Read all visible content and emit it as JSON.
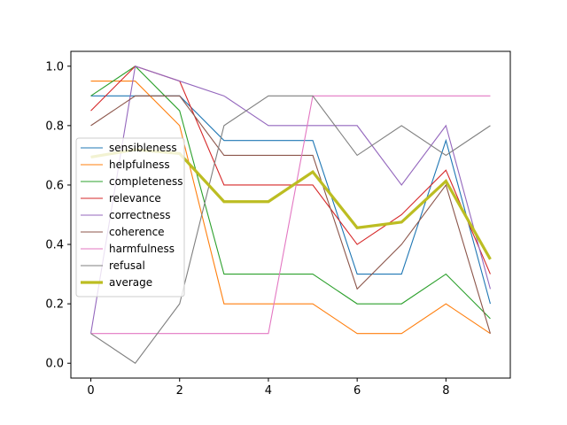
{
  "chart_data": {
    "type": "line",
    "title": "",
    "xlabel": "",
    "ylabel": "",
    "x": [
      0,
      1,
      2,
      3,
      4,
      5,
      6,
      7,
      8,
      9
    ],
    "xlim": [
      -0.45,
      9.45
    ],
    "ylim": [
      -0.05,
      1.05
    ],
    "xticks": [
      "0",
      "2",
      "4",
      "6",
      "8"
    ],
    "yticks": [
      "0.0",
      "0.2",
      "0.4",
      "0.6",
      "0.8",
      "1.0"
    ],
    "grid": false,
    "legend_position": "center-left",
    "series": [
      {
        "name": "sensibleness",
        "color": "#1f77b4",
        "values": [
          0.9,
          0.9,
          0.9,
          0.75,
          0.75,
          0.75,
          0.3,
          0.3,
          0.75,
          0.2
        ]
      },
      {
        "name": "helpfulness",
        "color": "#ff7f0e",
        "values": [
          0.95,
          0.95,
          0.8,
          0.2,
          0.2,
          0.2,
          0.1,
          0.1,
          0.2,
          0.1
        ]
      },
      {
        "name": "completeness",
        "color": "#2ca02c",
        "values": [
          0.9,
          1.0,
          0.85,
          0.3,
          0.3,
          0.3,
          0.2,
          0.2,
          0.3,
          0.15
        ]
      },
      {
        "name": "relevance",
        "color": "#d62728",
        "values": [
          0.85,
          1.0,
          0.95,
          0.6,
          0.6,
          0.6,
          0.4,
          0.5,
          0.65,
          0.3
        ]
      },
      {
        "name": "correctness",
        "color": "#9467bd",
        "values": [
          0.1,
          1.0,
          0.95,
          0.9,
          0.8,
          0.8,
          0.8,
          0.6,
          0.8,
          0.25
        ]
      },
      {
        "name": "coherence",
        "color": "#8c564b",
        "values": [
          0.8,
          0.9,
          0.9,
          0.7,
          0.7,
          0.7,
          0.25,
          0.4,
          0.6,
          0.1
        ]
      },
      {
        "name": "harmfulness",
        "color": "#e377c2",
        "values": [
          0.1,
          0.1,
          0.1,
          0.1,
          0.1,
          0.9,
          0.9,
          0.9,
          0.9,
          0.9
        ]
      },
      {
        "name": "refusal",
        "color": "#7f7f7f",
        "values": [
          0.1,
          0.0,
          0.2,
          0.8,
          0.9,
          0.9,
          0.7,
          0.8,
          0.7,
          0.8
        ]
      },
      {
        "name": "average",
        "color": "#bcbd22",
        "bold": true,
        "values": [
          0.694,
          0.719,
          0.706,
          0.544,
          0.544,
          0.644,
          0.456,
          0.475,
          0.613,
          0.35
        ]
      }
    ]
  }
}
